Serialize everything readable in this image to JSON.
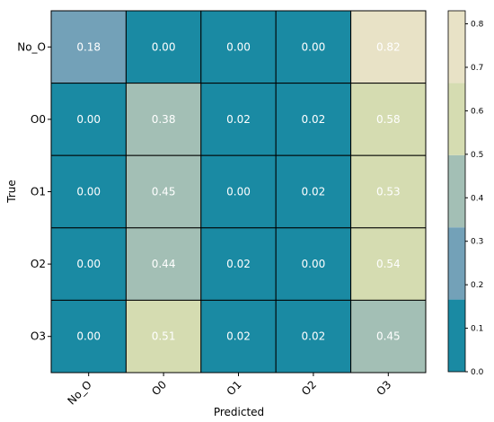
{
  "chart_data": {
    "type": "heatmap",
    "xlabel": "Predicted",
    "ylabel": "True",
    "x_categories": [
      "No_O",
      "O0",
      "O1",
      "O2",
      "O3"
    ],
    "y_categories": [
      "No_O",
      "O0",
      "O1",
      "O2",
      "O3"
    ],
    "values": [
      [
        0.18,
        0.0,
        0.0,
        0.0,
        0.82
      ],
      [
        0.0,
        0.38,
        0.02,
        0.02,
        0.58
      ],
      [
        0.0,
        0.45,
        0.0,
        0.02,
        0.53
      ],
      [
        0.0,
        0.44,
        0.02,
        0.0,
        0.54
      ],
      [
        0.0,
        0.51,
        0.02,
        0.02,
        0.45
      ]
    ],
    "colorbar": {
      "range": [
        0.0,
        0.83
      ],
      "ticks": [
        "0.0",
        "0.1",
        "0.2",
        "0.3",
        "0.4",
        "0.5",
        "0.6",
        "0.7",
        "0.8"
      ],
      "bands": [
        {
          "from": 0.0,
          "to": 0.166,
          "color": "#1a8aa3"
        },
        {
          "from": 0.166,
          "to": 0.332,
          "color": "#73a1b8"
        },
        {
          "from": 0.332,
          "to": 0.498,
          "color": "#a3bfb5"
        },
        {
          "from": 0.498,
          "to": 0.664,
          "color": "#d5dcb1"
        },
        {
          "from": 0.664,
          "to": 0.83,
          "color": "#e8e2c6"
        }
      ]
    },
    "grid": true,
    "legend": "right"
  }
}
